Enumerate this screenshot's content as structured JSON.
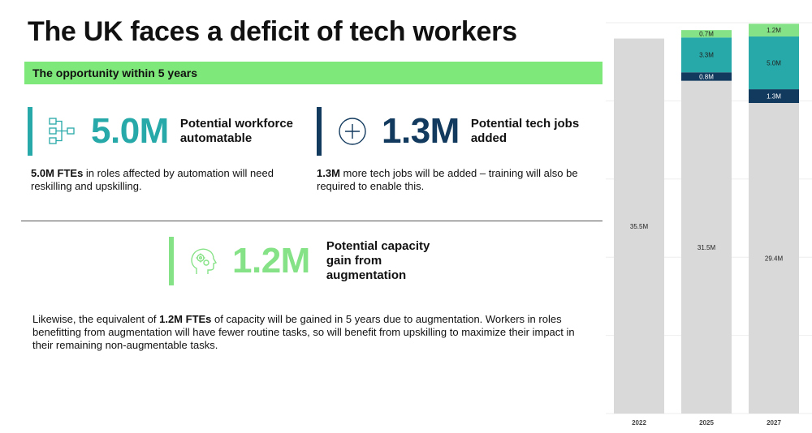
{
  "title": "The UK faces a deficit of tech workers",
  "subtitle": "The opportunity within 5 years",
  "stats": {
    "automatable": {
      "value": "5.0M",
      "label_line1": "Potential workforce",
      "label_line2": "automatable",
      "desc_bold": "5.0M FTEs",
      "desc_rest": " in roles affected by automation will need reskilling and upskilling.",
      "color": "#26a9a8",
      "icon": "flowchart-icon"
    },
    "added": {
      "value": "1.3M",
      "label_line1": "Potential tech jobs",
      "label_line2": "added",
      "desc_bold": "1.3M",
      "desc_rest": " more tech jobs will be added – training will also be required to enable this.",
      "color": "#123a5e",
      "icon": "plus-circle-icon"
    },
    "augmentation": {
      "value": "1.2M",
      "label_line1": "Potential capacity",
      "label_line2": "gain from",
      "label_line3": "augmentation",
      "desc_pre": "Likewise, the equivalent of ",
      "desc_bold": "1.2M FTEs",
      "desc_rest": " of capacity will be gained in 5 years due to augmentation. Workers in roles benefitting from augmentation will have fewer routine tasks, so will benefit from upskilling to maximize their impact in their remaining non-augmentable tasks.",
      "color": "#86e286",
      "icon": "head-gears-icon"
    }
  },
  "chart_data": {
    "type": "bar",
    "stacked": true,
    "categories": [
      "2022",
      "2025",
      "2027"
    ],
    "series": [
      {
        "values": [
          35.5,
          31.5,
          29.4
        ],
        "labels": [
          "35.5M",
          "31.5M",
          "29.4M"
        ],
        "color": "#d9d9d9"
      },
      {
        "values": [
          0,
          0.8,
          1.3
        ],
        "labels": [
          "",
          "0.8M",
          "1.3M"
        ],
        "color": "#123a5e"
      },
      {
        "values": [
          0,
          3.3,
          5.0
        ],
        "labels": [
          "",
          "3.3M",
          "5.0M"
        ],
        "color": "#26a9a8"
      },
      {
        "values": [
          0,
          0.7,
          1.2
        ],
        "labels": [
          "",
          "0.7M",
          "1.2M"
        ],
        "color": "#86e286"
      }
    ],
    "ylim": [
      0,
      37
    ],
    "grid": true
  }
}
